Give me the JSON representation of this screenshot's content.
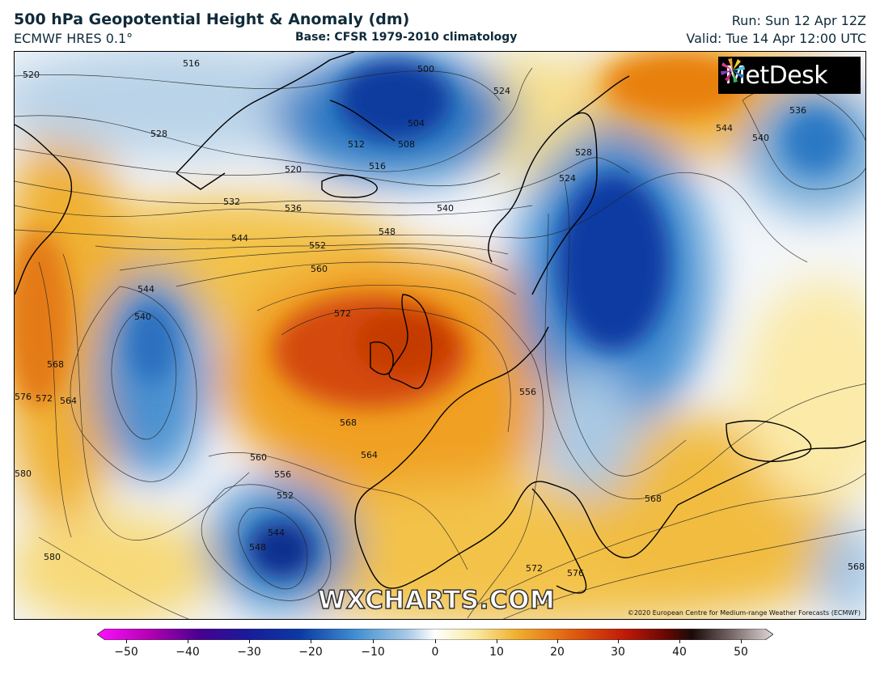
{
  "header": {
    "title": "500 hPa Geopotential Height & Anomaly (dm)",
    "model": "ECMWF HRES 0.1°",
    "base": "Base: CFSR 1979-2010 climatology",
    "run": "Run: Sun 12 Apr 12Z",
    "valid": "Valid: Tue 14 Apr 12:00 UTC"
  },
  "map": {
    "contour_labels": [
      "516",
      "520",
      "500",
      "524",
      "528",
      "504",
      "508",
      "512",
      "516",
      "520",
      "532",
      "536",
      "540",
      "544",
      "548",
      "552",
      "560",
      "572",
      "544",
      "540",
      "568",
      "576",
      "572",
      "564",
      "580",
      "528",
      "524",
      "536",
      "540",
      "544",
      "556",
      "568",
      "564",
      "560",
      "556",
      "552",
      "544",
      "548",
      "580",
      "568",
      "576",
      "572",
      "568"
    ],
    "logo_text": "MetDesk",
    "watermark": "WXCHARTS.COM",
    "copyright": "©2020 European Centre for Medium-range Weather Forecasts (ECMWF)"
  },
  "colorbar": {
    "ticks": [
      "−50",
      "−40",
      "−30",
      "−20",
      "−10",
      "0",
      "10",
      "20",
      "30",
      "40",
      "50"
    ],
    "min": -50,
    "max": 50
  },
  "colors": {
    "negative_strong": "#0b2f9a",
    "negative": "#2d7bc4",
    "neutral": "#f4f7fa",
    "positive": "#f0b030",
    "positive_strong": "#d44a08"
  }
}
